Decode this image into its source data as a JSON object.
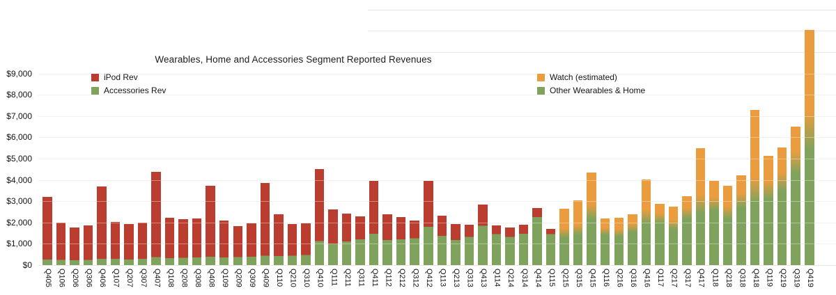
{
  "chart_data": {
    "type": "bar",
    "stacked": true,
    "title": "Wearables, Home and Accessories Segment Reported Revenues",
    "xlabel": "",
    "ylabel": "",
    "ylim": [
      0,
      12000
    ],
    "grid": true,
    "y_axis": {
      "ticks": [
        {
          "value": 0,
          "label": "$0"
        },
        {
          "value": 1000,
          "label": "$1,000"
        },
        {
          "value": 2000,
          "label": "$2,000"
        },
        {
          "value": 3000,
          "label": "$3,000"
        },
        {
          "value": 4000,
          "label": "$4,000"
        },
        {
          "value": 5000,
          "label": "$5,000"
        },
        {
          "value": 6000,
          "label": "$6,000"
        },
        {
          "value": 7000,
          "label": "$7,000"
        },
        {
          "value": 8000,
          "label": "$8,000"
        },
        {
          "value": 9000,
          "label": "$9,000"
        },
        {
          "value": 10000,
          "label": ""
        },
        {
          "value": 11000,
          "label": ""
        },
        {
          "value": 12000,
          "label": ""
        }
      ]
    },
    "categories": [
      "Q405",
      "Q106",
      "Q206",
      "Q306",
      "Q406",
      "Q107",
      "Q207",
      "Q307",
      "Q407",
      "Q108",
      "Q208",
      "Q308",
      "Q408",
      "Q109",
      "Q209",
      "Q309",
      "Q409",
      "Q110",
      "Q210",
      "Q310",
      "Q410",
      "Q111",
      "Q211",
      "Q311",
      "Q411",
      "Q112",
      "Q212",
      "Q312",
      "Q412",
      "Q113",
      "Q213",
      "Q313",
      "Q413",
      "Q114",
      "Q214",
      "Q314",
      "Q414",
      "Q115",
      "Q215",
      "Q315",
      "Q415",
      "Q116",
      "Q216",
      "Q316",
      "Q416",
      "Q117",
      "Q217",
      "Q317",
      "Q417",
      "Q118",
      "Q218",
      "Q318",
      "Q418",
      "Q119",
      "Q219",
      "Q319",
      "Q419"
    ],
    "series": [
      {
        "name": "iPod Rev",
        "color": "#bb3d30",
        "values": [
          2950,
          1740,
          1540,
          1610,
          3400,
          1750,
          1660,
          1710,
          4010,
          1900,
          1810,
          1820,
          3330,
          1720,
          1460,
          1560,
          3430,
          1950,
          1500,
          1500,
          3390,
          1600,
          1300,
          1090,
          2490,
          1210,
          1060,
          830,
          2140,
          950,
          750,
          580,
          990,
          420,
          440,
          440,
          430,
          240,
          0,
          0,
          0,
          0,
          0,
          0,
          0,
          0,
          0,
          0,
          0,
          0,
          0,
          0,
          0,
          0,
          0,
          0,
          0
        ]
      },
      {
        "name": "Accessories Rev",
        "color": "#7fa35c",
        "values": [
          260,
          240,
          230,
          250,
          300,
          290,
          260,
          290,
          370,
          330,
          350,
          360,
          390,
          360,
          370,
          390,
          440,
          420,
          440,
          470,
          1130,
          1000,
          1110,
          1210,
          1470,
          1180,
          1210,
          1260,
          1800,
          1380,
          1180,
          1320,
          1850,
          1450,
          1330,
          1470,
          2250,
          1450,
          0,
          0,
          0,
          0,
          0,
          0,
          0,
          0,
          0,
          0,
          0,
          0,
          0,
          0,
          0,
          0,
          0,
          0,
          0
        ]
      },
      {
        "name": "Watch (estimated)",
        "color": "#eb9c3e",
        "values": [
          0,
          0,
          0,
          0,
          0,
          0,
          0,
          0,
          0,
          0,
          0,
          0,
          0,
          0,
          0,
          0,
          0,
          0,
          0,
          0,
          0,
          0,
          0,
          0,
          0,
          0,
          0,
          0,
          0,
          0,
          0,
          0,
          0,
          0,
          0,
          0,
          0,
          0,
          1270,
          1550,
          2060,
          720,
          820,
          760,
          1940,
          810,
          980,
          960,
          2890,
          1270,
          1440,
          1390,
          4130,
          1870,
          1880,
          2010,
          5300
        ]
      },
      {
        "name": "Other Wearables & Home",
        "color": "#7fa35c",
        "values": [
          0,
          0,
          0,
          0,
          0,
          0,
          0,
          0,
          0,
          0,
          0,
          0,
          0,
          0,
          0,
          0,
          0,
          0,
          0,
          0,
          0,
          0,
          0,
          0,
          0,
          0,
          0,
          0,
          0,
          0,
          0,
          0,
          0,
          0,
          0,
          0,
          0,
          0,
          1370,
          1500,
          2290,
          1470,
          1400,
          1610,
          2080,
          2060,
          1750,
          2270,
          2600,
          2680,
          2300,
          2840,
          3170,
          3260,
          3640,
          4510,
          5750
        ]
      }
    ],
    "legend_position": "top-inside-two-columns"
  },
  "legend": {
    "left": [
      {
        "label": "iPod Rev",
        "color": "#bb3d30"
      },
      {
        "label": "Accessories Rev",
        "color": "#7fa35c"
      }
    ],
    "right": [
      {
        "label": "Watch (estimated)",
        "color": "#eb9c3e"
      },
      {
        "label": "Other Wearables & Home",
        "color": "#7fa35c"
      }
    ]
  }
}
